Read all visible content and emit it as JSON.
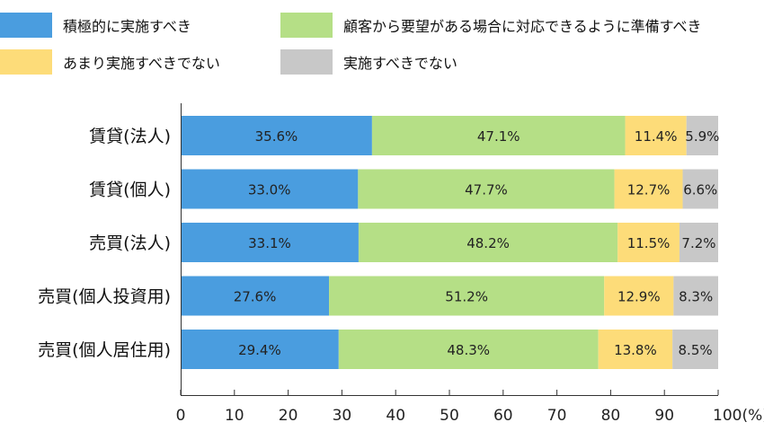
{
  "chart_data": {
    "type": "bar",
    "orientation": "horizontal",
    "stacked": true,
    "title": "",
    "xlabel": "",
    "ylabel": "",
    "xlim": [
      0,
      100
    ],
    "grid": false,
    "legend_position": "top",
    "categories": [
      "賃貸(法人)",
      "賃貸(個人)",
      "売買(法人)",
      "売買(個人投資用)",
      "売買(個人居住用)"
    ],
    "series": [
      {
        "name": "積極的に実施すべき",
        "color": "#4a9ddf",
        "values": [
          35.6,
          33.0,
          33.1,
          27.6,
          29.4
        ]
      },
      {
        "name": "顧客から要望がある場合に対応できるように準備すべき",
        "color": "#b5df86",
        "values": [
          47.1,
          47.7,
          48.2,
          51.2,
          48.3
        ]
      },
      {
        "name": "あまり実施すべきでない",
        "color": "#fddc79",
        "values": [
          11.4,
          12.7,
          11.5,
          12.9,
          13.8
        ]
      },
      {
        "name": "実施すべきでない",
        "color": "#c8c8c8",
        "values": [
          5.9,
          6.6,
          7.2,
          8.3,
          8.5
        ]
      }
    ],
    "data_labels": [
      [
        "35.6%",
        "47.1%",
        "11.4%",
        "5.9%"
      ],
      [
        "33.0%",
        "47.7%",
        "12.7%",
        "6.6%"
      ],
      [
        "33.1%",
        "48.2%",
        "11.5%",
        "7.2%"
      ],
      [
        "27.6%",
        "51.2%",
        "12.9%",
        "8.3%"
      ],
      [
        "29.4%",
        "48.3%",
        "13.8%",
        "8.5%"
      ]
    ],
    "x_ticks": [
      "0",
      "10",
      "20",
      "30",
      "40",
      "50",
      "60",
      "70",
      "80",
      "90",
      "100(%)"
    ]
  }
}
